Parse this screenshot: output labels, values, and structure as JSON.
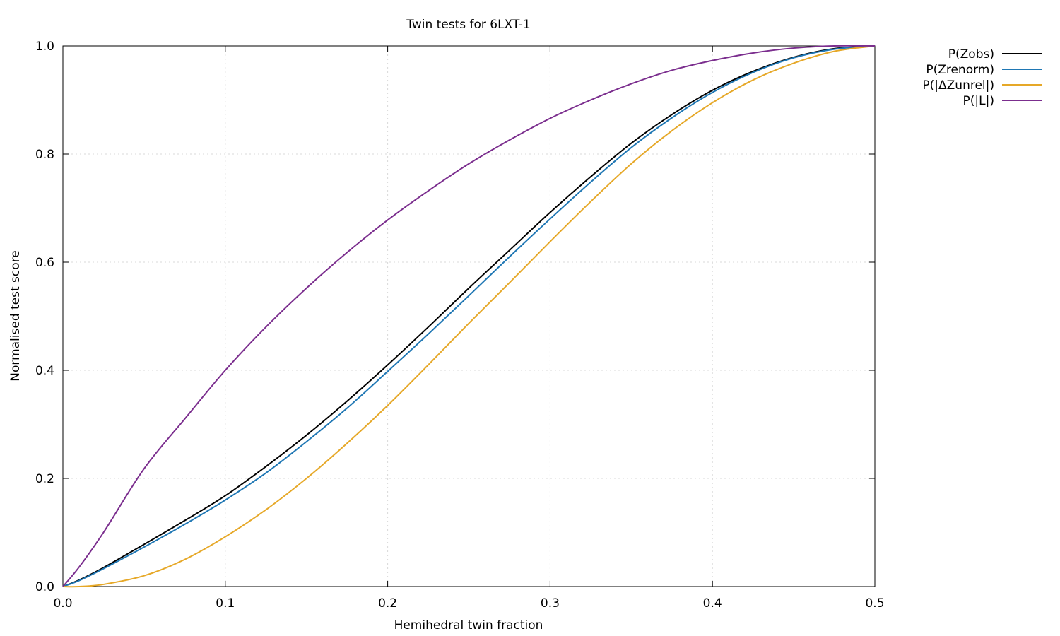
{
  "chart_data": {
    "type": "line",
    "title": "Twin tests for 6LXT-1",
    "xlabel": "Hemihedral twin fraction",
    "ylabel": "Normalised test score",
    "xlim": [
      0,
      0.5
    ],
    "ylim": [
      0,
      1
    ],
    "xticks": [
      "0.0",
      "0.1",
      "0.2",
      "0.3",
      "0.4",
      "0.5"
    ],
    "yticks": [
      "0.0",
      "0.2",
      "0.4",
      "0.6",
      "0.8",
      "1.0"
    ],
    "grid": true,
    "legend_position": "outside-top-right",
    "x": [
      0,
      0.01,
      0.025,
      0.05,
      0.075,
      0.1,
      0.125,
      0.15,
      0.175,
      0.2,
      0.225,
      0.25,
      0.275,
      0.3,
      0.325,
      0.35,
      0.375,
      0.4,
      0.425,
      0.45,
      0.475,
      0.5
    ],
    "series": [
      {
        "name": "P(Zobs)",
        "color": "#000000",
        "values": [
          0,
          0.012,
          0.035,
          0.078,
          0.122,
          0.168,
          0.222,
          0.28,
          0.343,
          0.41,
          0.48,
          0.552,
          0.622,
          0.692,
          0.758,
          0.82,
          0.873,
          0.918,
          0.953,
          0.979,
          0.995,
          1.0
        ]
      },
      {
        "name": "P(Zrenorm)",
        "color": "#1f77b4",
        "values": [
          0,
          0.011,
          0.033,
          0.073,
          0.115,
          0.16,
          0.21,
          0.268,
          0.33,
          0.398,
          0.467,
          0.538,
          0.61,
          0.68,
          0.748,
          0.812,
          0.867,
          0.914,
          0.951,
          0.978,
          0.994,
          1.0
        ]
      },
      {
        "name": "P(|ΔZunrel|)",
        "color": "#e6a828",
        "values": [
          0,
          0.0,
          0.004,
          0.02,
          0.05,
          0.092,
          0.142,
          0.2,
          0.265,
          0.335,
          0.41,
          0.487,
          0.562,
          0.638,
          0.712,
          0.782,
          0.843,
          0.895,
          0.937,
          0.968,
          0.99,
          1.0
        ]
      },
      {
        "name": "P(|L|)",
        "color": "#7b2e8e",
        "values": [
          0,
          0.036,
          0.1,
          0.218,
          0.31,
          0.4,
          0.48,
          0.552,
          0.618,
          0.678,
          0.732,
          0.782,
          0.826,
          0.866,
          0.9,
          0.93,
          0.955,
          0.973,
          0.987,
          0.996,
          1.0,
          1.0
        ]
      }
    ]
  }
}
